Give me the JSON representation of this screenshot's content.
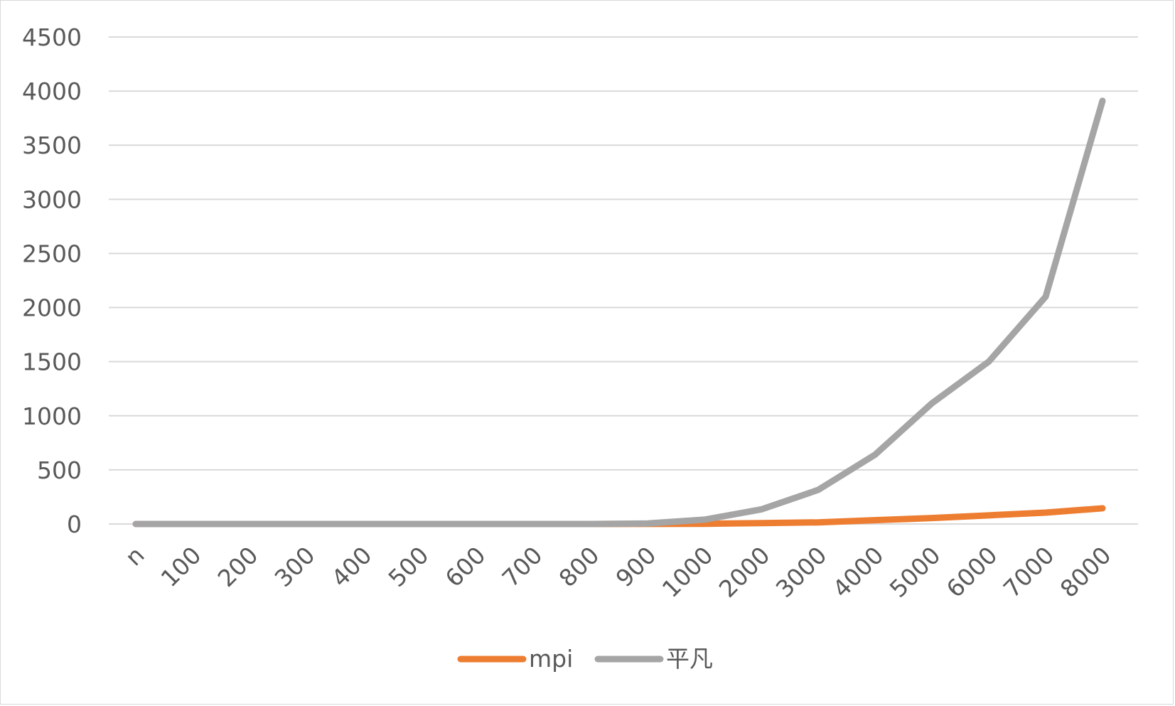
{
  "chart_data": {
    "type": "line",
    "title": "",
    "xlabel": "",
    "ylabel": "",
    "categories": [
      "n",
      "100",
      "200",
      "300",
      "400",
      "500",
      "600",
      "700",
      "800",
      "900",
      "1000",
      "2000",
      "3000",
      "4000",
      "5000",
      "6000",
      "7000",
      "8000"
    ],
    "ylim": [
      0,
      4500
    ],
    "yticks": [
      "0",
      "500",
      "1000",
      "1500",
      "2000",
      "2500",
      "3000",
      "3500",
      "4000",
      "4500"
    ],
    "ytick_values": [
      0,
      500,
      1000,
      1500,
      2000,
      2500,
      3000,
      3500,
      4000,
      4500
    ],
    "grid": true,
    "legend_position": "bottom",
    "series": [
      {
        "name": "mpi",
        "color": "#ed7d31",
        "values": [
          0,
          0,
          0,
          0,
          0,
          0,
          0,
          0,
          0,
          1,
          2,
          8,
          15,
          35,
          55,
          80,
          105,
          145
        ]
      },
      {
        "name": "平凡",
        "color": "#a5a5a5",
        "values": [
          0,
          0,
          0,
          0,
          0,
          0,
          0,
          0,
          0,
          5,
          40,
          135,
          315,
          640,
          1115,
          1500,
          2100,
          3910
        ]
      }
    ]
  }
}
